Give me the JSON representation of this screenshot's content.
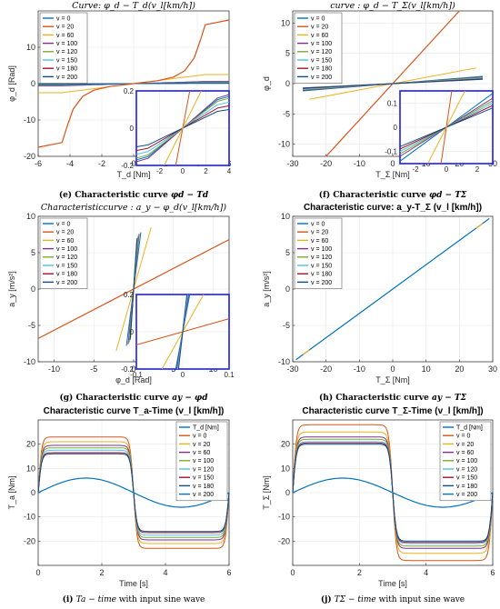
{
  "colors": {
    "v0": "#0072BD",
    "v20": "#D95319",
    "v60": "#EDB120",
    "v100": "#7E2F8E",
    "v120": "#77AC30",
    "v150": "#4DBEEE",
    "v180": "#A2142F",
    "v200": "#0F4C81",
    "grid": "#e6e6e6",
    "inset_border": "#1a1aff",
    "axis": "#262626"
  },
  "legend_speeds": [
    "v = 0",
    "v = 20",
    "v = 60",
    "v = 100",
    "v = 120",
    "v = 150",
    "v = 180",
    "v = 200"
  ],
  "chart_data": [
    {
      "id": "e",
      "type": "line",
      "title": "Curve: φ_d − T_d(v_l[km/h])",
      "xlabel": "T_d [Nm]",
      "ylabel": "φ_d [Rad]",
      "xlim": [
        -6,
        6
      ],
      "ylim": [
        -20,
        20
      ],
      "xticks": [
        "-6",
        "-4",
        "-2",
        "0",
        "2",
        "4",
        "6"
      ],
      "yticks": [
        "-20",
        "-10",
        "0",
        "10"
      ],
      "caption_letter": "(e)",
      "caption_text": "Characteristic curve",
      "caption_math": "φd − Td",
      "grid": true,
      "legend": "top-left",
      "inset": {
        "xlim": [
          -4,
          4
        ],
        "ylim": [
          -0.2,
          0.2
        ],
        "xticks": [
          "-2",
          "0",
          "2",
          "4"
        ],
        "yticks": [
          "-0.2",
          "0",
          "0.2"
        ]
      }
    },
    {
      "id": "f",
      "type": "line",
      "title": "curve : φ_d − T_Σ(v_l[km/h])",
      "xlabel": "T_Σ [Nm]",
      "ylabel": "φ_d",
      "xlim": [
        -30,
        30
      ],
      "ylim": [
        -12,
        12
      ],
      "xticks": [
        "-30",
        "-20",
        "-10",
        "0",
        "10",
        "20",
        "30"
      ],
      "yticks": [
        "-10",
        "-5",
        "0",
        "5",
        "10"
      ],
      "caption_letter": "(f)",
      "caption_text": "Characteristic curve",
      "caption_math": "φd − TΣ",
      "grid": true,
      "legend": "top-left",
      "inset": {
        "xlim": [
          -3,
          3
        ],
        "ylim": [
          -0.15,
          0.15
        ],
        "xticks": [
          "-2",
          "0",
          "2"
        ],
        "yticks": [
          "-0.1",
          "0",
          "0.1"
        ]
      }
    },
    {
      "id": "g",
      "type": "line",
      "title": "Characteristiccurve : a_y − φ_d(v_l[km/h])",
      "xlabel": "φ_d [Rad]",
      "ylabel": "a_y [m/s²]",
      "xlim": [
        -12,
        12
      ],
      "ylim": [
        -10,
        10
      ],
      "xticks": [
        "-10",
        "-5",
        "0",
        "5",
        "10"
      ],
      "yticks": [
        "-10",
        "-5",
        "0",
        "5",
        "10"
      ],
      "caption_letter": "(g)",
      "caption_text": "Characteristic curve",
      "caption_math": "ay − φd",
      "grid": true,
      "legend": "top-left",
      "inset": {
        "xlim": [
          -0.1,
          0.1
        ],
        "ylim": [
          -0.2,
          0.2
        ],
        "xticks": [
          "-0.1",
          "0",
          "0.1"
        ],
        "yticks": [
          "-0.2",
          "0",
          "0.2"
        ]
      }
    },
    {
      "id": "h",
      "type": "line",
      "title": "Characteristic curve: a_y-T_Σ (v_l [km/h])",
      "xlabel": "T_Σ [Nm]",
      "ylabel": "a_y [m/s²]",
      "xlim": [
        -30,
        30
      ],
      "ylim": [
        -10,
        10
      ],
      "xticks": [
        "-30",
        "-20",
        "-10",
        "0",
        "10",
        "20",
        "30"
      ],
      "yticks": [
        "-10",
        "-5",
        "0",
        "5",
        "10"
      ],
      "caption_letter": "(h)",
      "caption_text": "Characteristic curve",
      "caption_math": "ay − TΣ",
      "grid": true,
      "legend": "top-left"
    },
    {
      "id": "i",
      "type": "line",
      "title": "Characteristic curve T_a-Time (v_l [km/h])",
      "xlabel": "Time [s]",
      "ylabel": "T_a [Nm]",
      "xlim": [
        0,
        6
      ],
      "ylim": [
        -30,
        30
      ],
      "xticks": [
        "0",
        "2",
        "4",
        "6"
      ],
      "yticks": [
        "-20",
        "-10",
        "0",
        "10",
        "20"
      ],
      "caption_letter": "(i)",
      "caption_text": "with input sine wave",
      "caption_math": "Ta − time",
      "grid": true,
      "legend": "top-right",
      "legend_first": "T_d [Nm]",
      "amplitudes": [
        15,
        23,
        21,
        19.5,
        18.5,
        17.5,
        16.5,
        16
      ],
      "sine_amplitude": 6
    },
    {
      "id": "j",
      "type": "line",
      "title": "Characteristic curve T_Σ-Time (v_l [km/h])",
      "xlabel": "Time [s]",
      "ylabel": "T_Σ [Nm]",
      "xlim": [
        0,
        6
      ],
      "ylim": [
        -30,
        30
      ],
      "xticks": [
        "0",
        "2",
        "4",
        "6"
      ],
      "yticks": [
        "-20",
        "-10",
        "0",
        "10",
        "20"
      ],
      "caption_letter": "(j)",
      "caption_text": "with input sine wave",
      "caption_math": "TΣ − time",
      "grid": true,
      "legend": "top-right",
      "legend_first": "T_d [Nm]",
      "amplitudes": [
        20,
        28,
        25,
        23,
        22,
        21,
        20.5,
        20
      ],
      "sine_amplitude": 6
    }
  ]
}
